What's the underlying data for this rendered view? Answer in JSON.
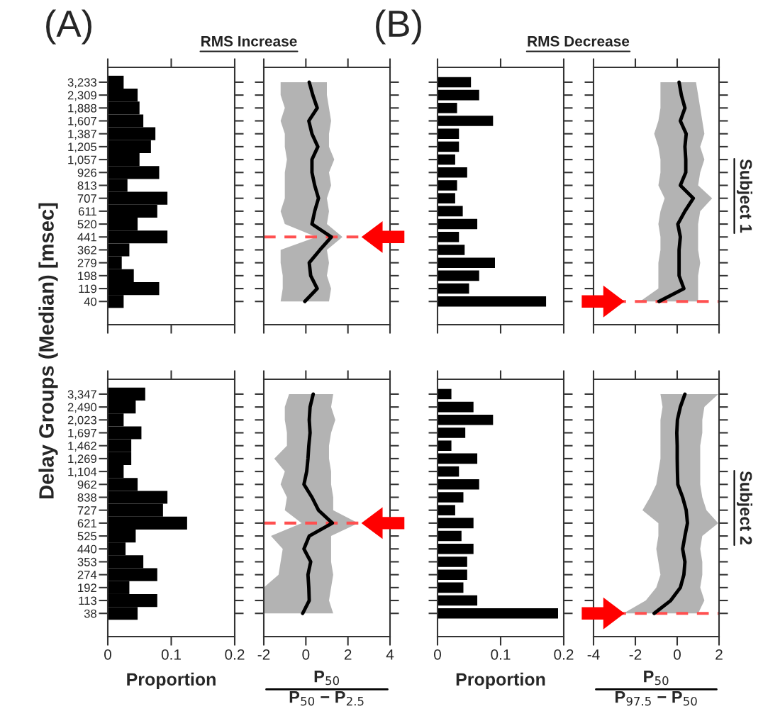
{
  "chart_data": [
    {
      "type": "bar",
      "orientation": "horizontal",
      "title": "RMS Increase",
      "annotations": [
        "(A)"
      ],
      "ylabel": "Delay Groups (Median) [msec]",
      "categories": [
        "3,233",
        "2,309",
        "1,888",
        "1,607",
        "1,387",
        "1,205",
        "1,057",
        "926",
        "813",
        "707",
        "611",
        "520",
        "441",
        "362",
        "279",
        "198",
        "119",
        "40"
      ],
      "series": [
        {
          "color": "#000000",
          "values": [
            0.025,
            0.047,
            0.05,
            0.056,
            0.075,
            0.068,
            0.05,
            0.081,
            0.031,
            0.094,
            0.078,
            0.047,
            0.094,
            0.034,
            0.022,
            0.041,
            0.081,
            0.025
          ]
        }
      ],
      "xlim": [
        0,
        0.2
      ],
      "xticks": [
        0,
        0.1,
        0.2
      ],
      "tick_labels": "y",
      "grid": false,
      "legend": false
    },
    {
      "type": "line",
      "orientation": "horizontal",
      "categories": [
        "3,233",
        "2,309",
        "1,888",
        "1,607",
        "1,387",
        "1,205",
        "1,057",
        "926",
        "813",
        "707",
        "611",
        "520",
        "441",
        "362",
        "279",
        "198",
        "119",
        "40"
      ],
      "series": [
        {
          "color": "#000000",
          "values": [
            0.16,
            0.33,
            0.54,
            0.14,
            0.29,
            0.57,
            0.29,
            0.29,
            0.42,
            0.6,
            0.42,
            0.29,
            1.21,
            0.67,
            0.16,
            0.23,
            0.54,
            -0.05
          ],
          "lower": [
            -1.2,
            -1.2,
            -1.0,
            -1.2,
            -1.0,
            -1.0,
            -0.9,
            -1.0,
            -1.0,
            -1.0,
            -1.2,
            -1.0,
            0.5,
            -1.2,
            -1.2,
            -1.1,
            -1.1,
            -1.2
          ],
          "upper": [
            1.0,
            1.0,
            1.1,
            1.2,
            1.1,
            1.1,
            1.35,
            1.1,
            1.2,
            1.0,
            1.1,
            1.0,
            1.74,
            1.0,
            1.1,
            1.0,
            1.2,
            1.1
          ]
        }
      ],
      "xlim": [
        -2,
        4
      ],
      "xticks": [
        -2,
        0,
        2,
        4
      ],
      "tick_labels": false,
      "ref_lines": [
        {
          "axis": "y",
          "value": "441",
          "color": "#ff5050",
          "line_style": "dashed"
        }
      ],
      "grid": false,
      "legend": false
    },
    {
      "type": "bar",
      "orientation": "horizontal",
      "title": "RMS Decrease",
      "annotations": [
        "(B)"
      ],
      "categories": [
        "3,233",
        "2,309",
        "1,888",
        "1,607",
        "1,387",
        "1,205",
        "1,057",
        "926",
        "813",
        "707",
        "611",
        "520",
        "441",
        "362",
        "279",
        "198",
        "119",
        "40"
      ],
      "series": [
        {
          "color": "#000000",
          "values": [
            0.053,
            0.066,
            0.031,
            0.088,
            0.034,
            0.034,
            0.028,
            0.047,
            0.031,
            0.028,
            0.04,
            0.063,
            0.034,
            0.043,
            0.091,
            0.066,
            0.05,
            0.172
          ]
        }
      ],
      "xlim": [
        0,
        0.2
      ],
      "xticks": [
        0,
        0.1,
        0.2
      ],
      "tick_labels": false,
      "grid": false,
      "legend": false
    },
    {
      "type": "line",
      "orientation": "horizontal",
      "annotations": [
        "Subject 1"
      ],
      "categories": [
        "3,233",
        "2,309",
        "1,888",
        "1,607",
        "1,387",
        "1,205",
        "1,057",
        "926",
        "813",
        "707",
        "611",
        "520",
        "441",
        "362",
        "279",
        "198",
        "119",
        "40"
      ],
      "series": [
        {
          "color": "#000000",
          "values": [
            0.09,
            0.2,
            0.37,
            0.15,
            0.43,
            0.37,
            0.41,
            0.41,
            0.15,
            0.77,
            0.37,
            0.03,
            0.15,
            0.09,
            0.09,
            0.09,
            0.32,
            -0.87
          ],
          "lower": [
            -0.8,
            -0.8,
            -0.8,
            -0.9,
            -1.1,
            -0.9,
            -0.8,
            -0.8,
            -0.9,
            -0.6,
            -0.8,
            -0.9,
            -0.8,
            -0.8,
            -0.9,
            -0.9,
            -0.9,
            -1.78
          ],
          "upper": [
            0.9,
            1.0,
            1.1,
            1.2,
            1.3,
            1.1,
            1.3,
            1.1,
            1.0,
            1.67,
            1.1,
            1.0,
            1.0,
            1.0,
            1.1,
            1.0,
            1.0,
            1.0
          ]
        }
      ],
      "xlim": [
        -4,
        2
      ],
      "xticks": [
        -4,
        -2,
        0,
        2
      ],
      "tick_labels": false,
      "ref_lines": [
        {
          "axis": "y",
          "value": "40",
          "color": "#ff5050",
          "line_style": "dashed"
        }
      ],
      "grid": false,
      "legend": false
    },
    {
      "type": "bar",
      "orientation": "horizontal",
      "xlabel": "Proportion",
      "categories": [
        "3,347",
        "2,490",
        "2,023",
        "1,697",
        "1,462",
        "1,269",
        "1,104",
        "962",
        "838",
        "727",
        "621",
        "525",
        "440",
        "353",
        "274",
        "192",
        "113",
        "38"
      ],
      "series": [
        {
          "color": "#000000",
          "values": [
            0.059,
            0.044,
            0.025,
            0.053,
            0.037,
            0.037,
            0.025,
            0.047,
            0.094,
            0.087,
            0.125,
            0.044,
            0.028,
            0.056,
            0.078,
            0.034,
            0.078,
            0.047
          ]
        }
      ],
      "xlim": [
        0,
        0.2
      ],
      "xticks": [
        0,
        0.1,
        0.2
      ],
      "grid": false,
      "legend": false
    },
    {
      "type": "line",
      "orientation": "horizontal",
      "xlabel": "P$_{50}$\nP$_{50}$ − P$_{2.5}$",
      "categories": [
        "3,347",
        "2,490",
        "2,023",
        "1,697",
        "1,462",
        "1,269",
        "1,104",
        "962",
        "838",
        "727",
        "621",
        "525",
        "440",
        "353",
        "274",
        "192",
        "113",
        "38"
      ],
      "series": [
        {
          "color": "#000000",
          "values": [
            0.35,
            0.2,
            0.16,
            0.2,
            0.14,
            0.1,
            0.04,
            -0.09,
            0.29,
            0.6,
            1.26,
            0.16,
            -0.09,
            0.23,
            0.1,
            0.14,
            0.16,
            -0.15
          ],
          "lower": [
            -0.8,
            -1.0,
            -1.0,
            -0.9,
            -0.9,
            -1.5,
            -1.0,
            -1.2,
            -0.9,
            -1.0,
            -0.2,
            -1.66,
            -1.1,
            -1.2,
            -1.3,
            -2.0,
            -2.0,
            -2.0
          ],
          "upper": [
            1.3,
            1.2,
            1.4,
            1.2,
            1.1,
            1.1,
            1.2,
            1.2,
            1.3,
            1.3,
            2.49,
            1.2,
            1.2,
            1.2,
            1.3,
            1.2,
            1.1,
            1.3
          ]
        }
      ],
      "xlim": [
        -2,
        4
      ],
      "xticks": [
        -2,
        0,
        2,
        4
      ],
      "tick_labels": "x",
      "ref_lines": [
        {
          "axis": "y",
          "value": "621",
          "color": "#ff5050",
          "line_style": "dashed"
        }
      ],
      "grid": false,
      "legend": false
    },
    {
      "type": "bar",
      "orientation": "horizontal",
      "xlabel": "Proportion",
      "categories": [
        "3,347",
        "2,490",
        "2,023",
        "1,697",
        "1,462",
        "1,269",
        "1,104",
        "962",
        "838",
        "727",
        "621",
        "525",
        "440",
        "353",
        "274",
        "192",
        "113",
        "38"
      ],
      "series": [
        {
          "color": "#000000",
          "values": [
            0.022,
            0.057,
            0.088,
            0.044,
            0.022,
            0.063,
            0.034,
            0.066,
            0.041,
            0.028,
            0.057,
            0.038,
            0.057,
            0.047,
            0.047,
            0.041,
            0.063,
            0.191
          ]
        }
      ],
      "xlim": [
        0,
        0.2
      ],
      "xticks": [
        0,
        0.1,
        0.2
      ],
      "tick_labels": "x",
      "grid": false,
      "legend": false
    },
    {
      "type": "line",
      "orientation": "horizontal",
      "xlabel": "P$_{50}$\nP$_{97.5}$ − P$_{50}$",
      "annotations": [
        "Subject 2"
      ],
      "categories": [
        "3,347",
        "2,490",
        "2,023",
        "1,697",
        "1,462",
        "1,269",
        "1,104",
        "962",
        "838",
        "727",
        "621",
        "525",
        "440",
        "353",
        "274",
        "192",
        "113",
        "38"
      ],
      "series": [
        {
          "color": "#000000",
          "values": [
            0.37,
            0.15,
            0.01,
            -0.02,
            0.0,
            0.0,
            0.01,
            0.03,
            0.26,
            0.43,
            0.49,
            0.37,
            0.26,
            0.37,
            0.32,
            0.15,
            -0.31,
            -1.1
          ],
          "lower": [
            -0.8,
            -0.7,
            -0.8,
            -0.8,
            -0.8,
            -0.8,
            -0.9,
            -1.0,
            -1.3,
            -1.66,
            -0.9,
            -0.9,
            -1.0,
            -0.9,
            -0.8,
            -1.0,
            -1.5,
            -2.57
          ],
          "upper": [
            1.96,
            1.3,
            1.2,
            1.2,
            1.1,
            1.1,
            1.1,
            1.1,
            1.2,
            1.4,
            1.96,
            1.2,
            1.1,
            1.2,
            1.2,
            1.1,
            1.3,
            1.0
          ]
        }
      ],
      "xlim": [
        -4,
        2
      ],
      "xticks": [
        -4,
        -2,
        0,
        2
      ],
      "tick_labels": "x",
      "ref_lines": [
        {
          "axis": "y",
          "value": "38",
          "color": "#ff5050",
          "line_style": "dashed"
        }
      ],
      "grid": false,
      "legend": false
    }
  ]
}
